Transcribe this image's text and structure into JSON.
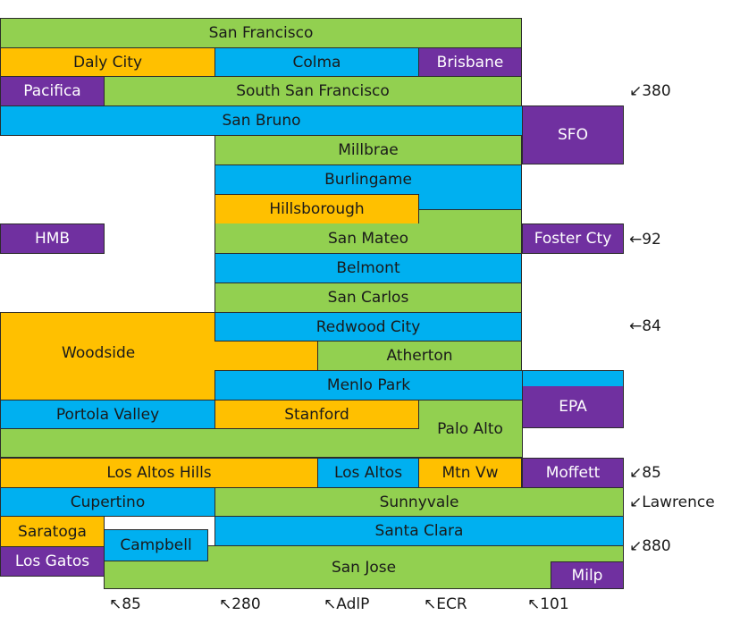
{
  "colors": {
    "green": "#92d050",
    "blue": "#00b0f0",
    "orange": "#ffc000",
    "purple": "#7030a0"
  },
  "cities": {
    "san_francisco": "San Francisco",
    "daly_city": "Daly City",
    "colma": "Colma",
    "brisbane": "Brisbane",
    "pacifica": "Pacifica",
    "south_san_francisco": "South San Francisco",
    "san_bruno": "San Bruno",
    "sfo": "SFO",
    "millbrae": "Millbrae",
    "burlingame": "Burlingame",
    "hillsborough": "Hillsborough",
    "hmb": "HMB",
    "san_mateo": "San Mateo",
    "foster_city": "Foster Cty",
    "belmont": "Belmont",
    "san_carlos": "San Carlos",
    "redwood_city": "Redwood City",
    "woodside": "Woodside",
    "atherton": "Atherton",
    "menlo_park": "Menlo Park",
    "epa": "EPA",
    "portola_valley": "Portola Valley",
    "stanford": "Stanford",
    "palo_alto": "Palo Alto",
    "los_altos_hills": "Los Altos Hills",
    "los_altos": "Los Altos",
    "mtn_vw": "Mtn Vw",
    "moffett": "Moffett",
    "cupertino": "Cupertino",
    "sunnyvale": "Sunnyvale",
    "saratoga": "Saratoga",
    "campbell": "Campbell",
    "santa_clara": "Santa Clara",
    "los_gatos": "Los Gatos",
    "san_jose": "San Jose",
    "milp": "Milp"
  },
  "roads_right": {
    "r380": "↙380",
    "r92": "←92",
    "r84": "←84",
    "r85": "↙85",
    "lawrence": "↙Lawrence",
    "r880": "↙880"
  },
  "roads_bottom": {
    "r85": "↖85",
    "r280": "↖280",
    "adlp": "↖AdlP",
    "ecr": "↖ECR",
    "r101": "↖101"
  }
}
